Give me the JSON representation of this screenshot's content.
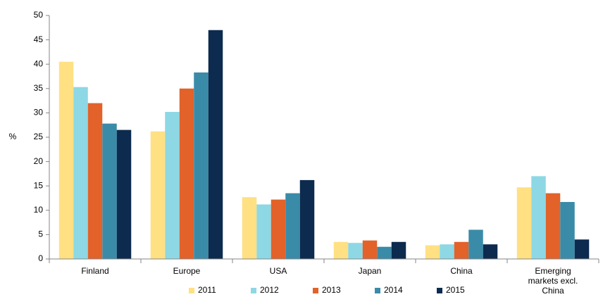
{
  "chart_data": {
    "type": "bar",
    "y_label": "%",
    "categories": [
      "Finland",
      "Europe",
      "USA",
      "Japan",
      "China",
      "Emerging markets excl. China"
    ],
    "series": [
      {
        "name": "2011",
        "color": "#ffe083",
        "values": [
          40.5,
          26.2,
          12.7,
          3.5,
          2.8,
          14.7
        ]
      },
      {
        "name": "2012",
        "color": "#8dd8e4",
        "values": [
          35.3,
          30.2,
          11.2,
          3.3,
          3.0,
          17.0
        ]
      },
      {
        "name": "2013",
        "color": "#e2622a",
        "values": [
          32.0,
          35.0,
          12.2,
          3.8,
          3.5,
          13.5
        ]
      },
      {
        "name": "2014",
        "color": "#3a8ba8",
        "values": [
          27.8,
          38.3,
          13.5,
          2.5,
          6.0,
          11.7
        ]
      },
      {
        "name": "2015",
        "color": "#0c2b4e",
        "values": [
          26.5,
          47.0,
          16.2,
          3.5,
          3.0,
          4.0
        ]
      }
    ],
    "ylim": [
      0,
      50
    ],
    "yticks": [
      0,
      5,
      10,
      15,
      20,
      25,
      30,
      35,
      40,
      45,
      50
    ],
    "grid": false,
    "legend": "bottom"
  }
}
